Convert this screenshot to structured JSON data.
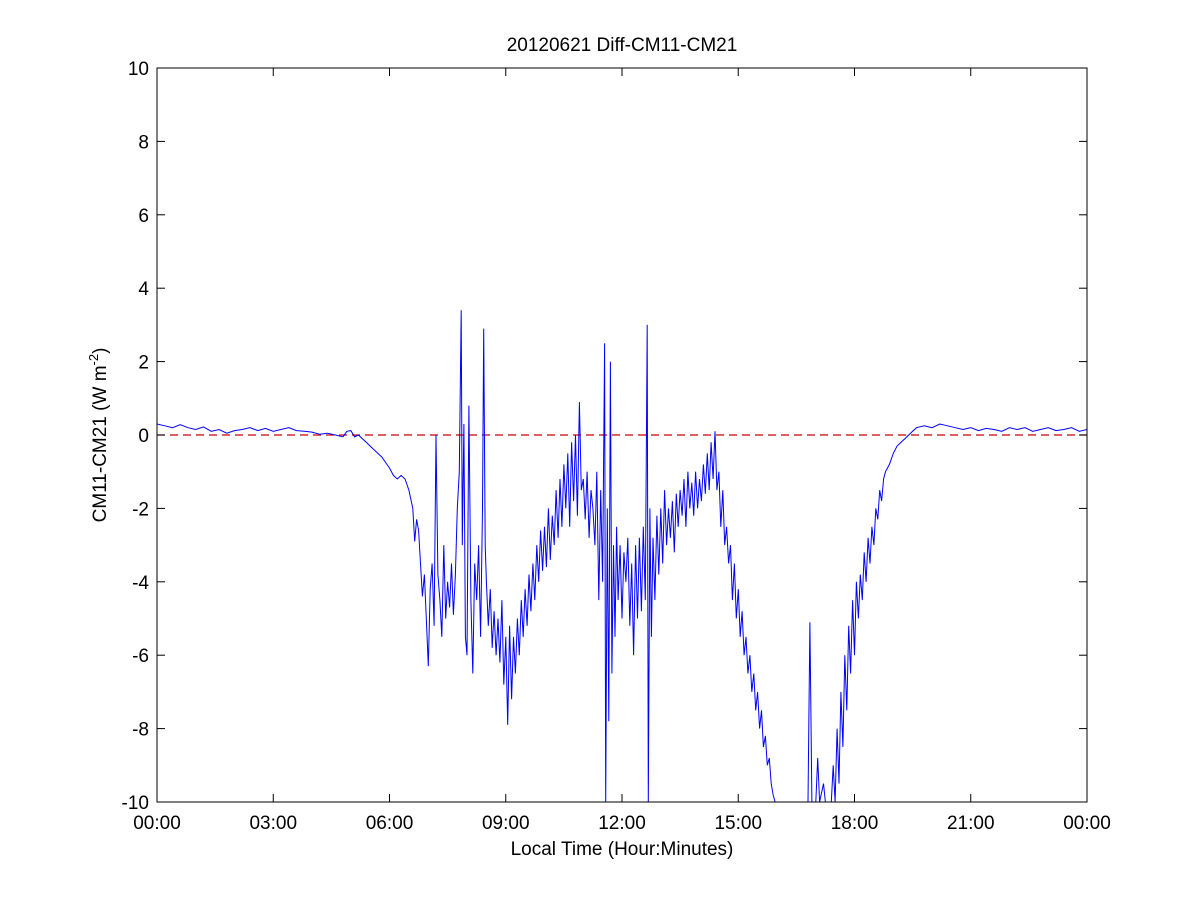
{
  "chart_data": {
    "type": "line",
    "title": "20120621 Diff-CM11-CM21",
    "xlabel": "Local Time (Hour:Minutes)",
    "ylabel_main": "CM11-CM21 (W m",
    "ylabel_sup": "-2",
    "ylabel_close": ")",
    "xlim": [
      0,
      24
    ],
    "ylim": [
      -10,
      10
    ],
    "x_ticks": [
      {
        "value": 0,
        "label": "00:00"
      },
      {
        "value": 3,
        "label": "03:00"
      },
      {
        "value": 6,
        "label": "06:00"
      },
      {
        "value": 9,
        "label": "09:00"
      },
      {
        "value": 12,
        "label": "12:00"
      },
      {
        "value": 15,
        "label": "15:00"
      },
      {
        "value": 18,
        "label": "18:00"
      },
      {
        "value": 21,
        "label": "21:00"
      },
      {
        "value": 24,
        "label": "00:00"
      }
    ],
    "y_ticks": [
      {
        "value": 10,
        "label": "10"
      },
      {
        "value": 8,
        "label": "8"
      },
      {
        "value": 6,
        "label": "6"
      },
      {
        "value": 4,
        "label": "4"
      },
      {
        "value": 2,
        "label": "2"
      },
      {
        "value": 0,
        "label": "0"
      },
      {
        "value": -2,
        "label": "-2"
      },
      {
        "value": -4,
        "label": "-4"
      },
      {
        "value": -6,
        "label": "-6"
      },
      {
        "value": -8,
        "label": "-8"
      },
      {
        "value": -10,
        "label": "-10"
      }
    ],
    "grid": false,
    "reference_line": {
      "y": 0,
      "color": "#cc0000",
      "style": "dashed"
    },
    "series": [
      {
        "color": "#0000ff",
        "points": [
          [
            0.0,
            0.3
          ],
          [
            0.2,
            0.25
          ],
          [
            0.4,
            0.2
          ],
          [
            0.6,
            0.28
          ],
          [
            0.8,
            0.2
          ],
          [
            1.0,
            0.15
          ],
          [
            1.2,
            0.22
          ],
          [
            1.4,
            0.1
          ],
          [
            1.6,
            0.15
          ],
          [
            1.8,
            0.05
          ],
          [
            2.0,
            0.12
          ],
          [
            2.2,
            0.15
          ],
          [
            2.4,
            0.2
          ],
          [
            2.6,
            0.12
          ],
          [
            2.8,
            0.18
          ],
          [
            3.0,
            0.1
          ],
          [
            3.2,
            0.15
          ],
          [
            3.4,
            0.2
          ],
          [
            3.6,
            0.12
          ],
          [
            3.8,
            0.1
          ],
          [
            4.0,
            0.08
          ],
          [
            4.2,
            0.02
          ],
          [
            4.4,
            0.05
          ],
          [
            4.6,
            0.0
          ],
          [
            4.8,
            -0.05
          ],
          [
            4.9,
            0.1
          ],
          [
            5.0,
            0.12
          ],
          [
            5.1,
            -0.05
          ],
          [
            5.2,
            0.0
          ],
          [
            5.3,
            -0.1
          ],
          [
            5.4,
            -0.2
          ],
          [
            5.5,
            -0.3
          ],
          [
            5.6,
            -0.4
          ],
          [
            5.7,
            -0.5
          ],
          [
            5.8,
            -0.6
          ],
          [
            5.9,
            -0.75
          ],
          [
            6.0,
            -0.9
          ],
          [
            6.1,
            -1.1
          ],
          [
            6.2,
            -1.2
          ],
          [
            6.3,
            -1.1
          ],
          [
            6.4,
            -1.2
          ],
          [
            6.5,
            -1.5
          ],
          [
            6.6,
            -2.0
          ],
          [
            6.65,
            -2.9
          ],
          [
            6.7,
            -2.3
          ],
          [
            6.75,
            -2.6
          ],
          [
            6.8,
            -3.5
          ],
          [
            6.85,
            -4.4
          ],
          [
            6.9,
            -3.8
          ],
          [
            6.95,
            -5.0
          ],
          [
            7.0,
            -6.3
          ],
          [
            7.05,
            -4.2
          ],
          [
            7.1,
            -3.5
          ],
          [
            7.15,
            -5.2
          ],
          [
            7.2,
            0.0
          ],
          [
            7.25,
            -3.8
          ],
          [
            7.3,
            -4.5
          ],
          [
            7.35,
            -5.5
          ],
          [
            7.4,
            -3.0
          ],
          [
            7.45,
            -5.0
          ],
          [
            7.5,
            -4.0
          ],
          [
            7.55,
            -4.7
          ],
          [
            7.6,
            -3.5
          ],
          [
            7.65,
            -4.9
          ],
          [
            7.7,
            -3.8
          ],
          [
            7.75,
            -2.0
          ],
          [
            7.8,
            -1.0
          ],
          [
            7.85,
            3.4
          ],
          [
            7.88,
            -3.0
          ],
          [
            7.92,
            0.3
          ],
          [
            7.96,
            -5.5
          ],
          [
            8.0,
            -6.0
          ],
          [
            8.05,
            0.8
          ],
          [
            8.1,
            -4.5
          ],
          [
            8.15,
            -6.5
          ],
          [
            8.2,
            -3.5
          ],
          [
            8.25,
            -4.5
          ],
          [
            8.3,
            -3.0
          ],
          [
            8.35,
            -5.5
          ],
          [
            8.4,
            -2.0
          ],
          [
            8.43,
            2.9
          ],
          [
            8.47,
            -3.0
          ],
          [
            8.5,
            -4.0
          ],
          [
            8.55,
            -5.2
          ],
          [
            8.6,
            -4.2
          ],
          [
            8.65,
            -5.8
          ],
          [
            8.7,
            -4.8
          ],
          [
            8.75,
            -6.0
          ],
          [
            8.8,
            -5.0
          ],
          [
            8.85,
            -6.2
          ],
          [
            8.9,
            -4.5
          ],
          [
            8.95,
            -6.8
          ],
          [
            9.0,
            -5.5
          ],
          [
            9.05,
            -7.9
          ],
          [
            9.1,
            -5.2
          ],
          [
            9.15,
            -7.2
          ],
          [
            9.2,
            -5.5
          ],
          [
            9.25,
            -6.5
          ],
          [
            9.3,
            -5.0
          ],
          [
            9.35,
            -6.0
          ],
          [
            9.4,
            -4.5
          ],
          [
            9.45,
            -5.5
          ],
          [
            9.5,
            -4.2
          ],
          [
            9.55,
            -5.2
          ],
          [
            9.6,
            -3.8
          ],
          [
            9.65,
            -4.8
          ],
          [
            9.7,
            -3.5
          ],
          [
            9.75,
            -4.5
          ],
          [
            9.8,
            -3.0
          ],
          [
            9.85,
            -4.0
          ],
          [
            9.9,
            -2.6
          ],
          [
            9.95,
            -3.7
          ],
          [
            10.0,
            -2.5
          ],
          [
            10.05,
            -3.6
          ],
          [
            10.1,
            -2.0
          ],
          [
            10.15,
            -3.4
          ],
          [
            10.2,
            -2.2
          ],
          [
            10.25,
            -3.0
          ],
          [
            10.3,
            -1.5
          ],
          [
            10.35,
            -2.8
          ],
          [
            10.4,
            -1.2
          ],
          [
            10.45,
            -2.5
          ],
          [
            10.5,
            -0.8
          ],
          [
            10.55,
            -2.0
          ],
          [
            10.6,
            -0.5
          ],
          [
            10.65,
            -2.5
          ],
          [
            10.7,
            -0.2
          ],
          [
            10.75,
            -1.8
          ],
          [
            10.8,
            0.0
          ],
          [
            10.85,
            -2.2
          ],
          [
            10.9,
            0.9
          ],
          [
            10.95,
            -1.5
          ],
          [
            11.0,
            -1.2
          ],
          [
            11.05,
            -2.3
          ],
          [
            11.1,
            -1.0
          ],
          [
            11.15,
            -2.8
          ],
          [
            11.2,
            -1.5
          ],
          [
            11.25,
            -2.0
          ],
          [
            11.3,
            -3.0
          ],
          [
            11.35,
            -1.0
          ],
          [
            11.4,
            -4.5
          ],
          [
            11.45,
            -1.5
          ],
          [
            11.5,
            -4.0
          ],
          [
            11.55,
            2.5
          ],
          [
            11.58,
            -10.0
          ],
          [
            11.62,
            -2.0
          ],
          [
            11.66,
            -7.8
          ],
          [
            11.7,
            2.0
          ],
          [
            11.74,
            -6.5
          ],
          [
            11.78,
            -3.0
          ],
          [
            11.82,
            -5.5
          ],
          [
            11.86,
            -2.5
          ],
          [
            11.9,
            -4.5
          ],
          [
            11.95,
            -3.0
          ],
          [
            12.0,
            -5.0
          ],
          [
            12.05,
            -3.2
          ],
          [
            12.1,
            -4.0
          ],
          [
            12.15,
            -2.8
          ],
          [
            12.2,
            -5.2
          ],
          [
            12.25,
            -3.5
          ],
          [
            12.3,
            -6.0
          ],
          [
            12.35,
            -3.0
          ],
          [
            12.4,
            -5.0
          ],
          [
            12.45,
            -2.8
          ],
          [
            12.5,
            -4.8
          ],
          [
            12.55,
            -2.5
          ],
          [
            12.6,
            -4.5
          ],
          [
            12.65,
            3.0
          ],
          [
            12.68,
            -10.0
          ],
          [
            12.72,
            -2.0
          ],
          [
            12.76,
            -5.5
          ],
          [
            12.8,
            -2.8
          ],
          [
            12.85,
            -4.5
          ],
          [
            12.9,
            -2.2
          ],
          [
            12.95,
            -3.8
          ],
          [
            13.0,
            -2.0
          ],
          [
            13.05,
            -3.5
          ],
          [
            13.1,
            -1.5
          ],
          [
            13.15,
            -3.0
          ],
          [
            13.2,
            -2.0
          ],
          [
            13.25,
            -2.8
          ],
          [
            13.3,
            -1.8
          ],
          [
            13.35,
            -3.2
          ],
          [
            13.4,
            -1.6
          ],
          [
            13.45,
            -2.5
          ],
          [
            13.5,
            -1.5
          ],
          [
            13.55,
            -2.2
          ],
          [
            13.6,
            -1.2
          ],
          [
            13.65,
            -2.5
          ],
          [
            13.7,
            -1.0
          ],
          [
            13.75,
            -2.0
          ],
          [
            13.8,
            -1.3
          ],
          [
            13.85,
            -2.2
          ],
          [
            13.9,
            -1.0
          ],
          [
            13.95,
            -2.0
          ],
          [
            14.0,
            -1.2
          ],
          [
            14.05,
            -1.8
          ],
          [
            14.1,
            -0.8
          ],
          [
            14.15,
            -1.6
          ],
          [
            14.2,
            -0.5
          ],
          [
            14.25,
            -1.5
          ],
          [
            14.3,
            -0.2
          ],
          [
            14.35,
            -1.2
          ],
          [
            14.4,
            0.1
          ],
          [
            14.45,
            -1.5
          ],
          [
            14.5,
            -1.0
          ],
          [
            14.55,
            -2.5
          ],
          [
            14.6,
            -1.5
          ],
          [
            14.65,
            -3.0
          ],
          [
            14.7,
            -2.5
          ],
          [
            14.75,
            -3.5
          ],
          [
            14.8,
            -3.0
          ],
          [
            14.85,
            -4.5
          ],
          [
            14.9,
            -3.5
          ],
          [
            14.95,
            -5.0
          ],
          [
            15.0,
            -4.2
          ],
          [
            15.05,
            -5.5
          ],
          [
            15.1,
            -4.8
          ],
          [
            15.15,
            -6.0
          ],
          [
            15.2,
            -5.5
          ],
          [
            15.25,
            -6.5
          ],
          [
            15.3,
            -6.0
          ],
          [
            15.35,
            -7.0
          ],
          [
            15.4,
            -6.5
          ],
          [
            15.45,
            -7.5
          ],
          [
            15.5,
            -7.0
          ],
          [
            15.55,
            -8.0
          ],
          [
            15.6,
            -7.5
          ],
          [
            15.65,
            -8.5
          ],
          [
            15.7,
            -8.2
          ],
          [
            15.75,
            -9.0
          ],
          [
            15.8,
            -8.8
          ],
          [
            15.85,
            -9.5
          ],
          [
            15.9,
            -9.8
          ],
          [
            15.95,
            -10.0
          ],
          [
            16.8,
            -10.0
          ],
          [
            16.85,
            -5.1
          ],
          [
            16.9,
            -10.0
          ],
          [
            17.0,
            -10.0
          ],
          [
            17.05,
            -8.8
          ],
          [
            17.1,
            -10.0
          ],
          [
            17.2,
            -9.5
          ],
          [
            17.25,
            -10.0
          ],
          [
            17.4,
            -10.0
          ],
          [
            17.45,
            -9.0
          ],
          [
            17.5,
            -10.0
          ],
          [
            17.55,
            -8.0
          ],
          [
            17.6,
            -9.5
          ],
          [
            17.65,
            -7.0
          ],
          [
            17.7,
            -8.5
          ],
          [
            17.75,
            -6.0
          ],
          [
            17.8,
            -7.5
          ],
          [
            17.85,
            -5.2
          ],
          [
            17.9,
            -6.5
          ],
          [
            17.95,
            -4.5
          ],
          [
            18.0,
            -6.0
          ],
          [
            18.05,
            -4.0
          ],
          [
            18.1,
            -5.0
          ],
          [
            18.15,
            -3.8
          ],
          [
            18.2,
            -4.5
          ],
          [
            18.25,
            -3.2
          ],
          [
            18.3,
            -4.0
          ],
          [
            18.35,
            -2.8
          ],
          [
            18.4,
            -3.5
          ],
          [
            18.45,
            -2.5
          ],
          [
            18.5,
            -3.0
          ],
          [
            18.55,
            -2.0
          ],
          [
            18.6,
            -2.3
          ],
          [
            18.65,
            -1.5
          ],
          [
            18.7,
            -1.8
          ],
          [
            18.75,
            -1.2
          ],
          [
            18.8,
            -1.0
          ],
          [
            18.9,
            -0.8
          ],
          [
            19.0,
            -0.5
          ],
          [
            19.1,
            -0.3
          ],
          [
            19.2,
            -0.2
          ],
          [
            19.3,
            -0.1
          ],
          [
            19.4,
            0.0
          ],
          [
            19.5,
            0.1
          ],
          [
            19.6,
            0.2
          ],
          [
            19.8,
            0.25
          ],
          [
            20.0,
            0.2
          ],
          [
            20.2,
            0.3
          ],
          [
            20.4,
            0.25
          ],
          [
            20.6,
            0.2
          ],
          [
            20.8,
            0.15
          ],
          [
            21.0,
            0.2
          ],
          [
            21.2,
            0.12
          ],
          [
            21.4,
            0.18
          ],
          [
            21.6,
            0.15
          ],
          [
            21.8,
            0.1
          ],
          [
            22.0,
            0.2
          ],
          [
            22.2,
            0.15
          ],
          [
            22.4,
            0.2
          ],
          [
            22.6,
            0.1
          ],
          [
            22.8,
            0.15
          ],
          [
            23.0,
            0.2
          ],
          [
            23.2,
            0.12
          ],
          [
            23.4,
            0.15
          ],
          [
            23.6,
            0.2
          ],
          [
            23.8,
            0.1
          ],
          [
            24.0,
            0.15
          ]
        ]
      }
    ]
  }
}
